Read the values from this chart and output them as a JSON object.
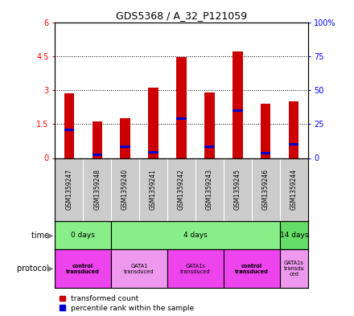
{
  "title": "GDS5368 / A_32_P121059",
  "samples": [
    "GSM1359247",
    "GSM1359248",
    "GSM1359240",
    "GSM1359241",
    "GSM1359242",
    "GSM1359243",
    "GSM1359245",
    "GSM1359246",
    "GSM1359244"
  ],
  "red_values": [
    2.85,
    1.6,
    1.75,
    3.1,
    4.45,
    2.9,
    4.7,
    2.4,
    2.5
  ],
  "blue_values": [
    1.25,
    0.15,
    0.5,
    0.25,
    1.75,
    0.5,
    2.1,
    0.2,
    0.6
  ],
  "ylim_left": [
    0,
    6
  ],
  "ylim_right": [
    0,
    100
  ],
  "yticks_left": [
    0,
    1.5,
    3.0,
    4.5,
    6.0
  ],
  "yticks_right": [
    0,
    25,
    50,
    75,
    100
  ],
  "ytick_labels_left": [
    "0",
    "1.5",
    "3",
    "4.5",
    "6"
  ],
  "ytick_labels_right": [
    "0",
    "25",
    "50",
    "75",
    "100%"
  ],
  "bar_color_red": "#CC0000",
  "bar_color_blue": "#0000CC",
  "grid_color": "black",
  "bg_color": "white",
  "label_area_color": "#CCCCCC",
  "bar_width": 0.35,
  "time_groups": [
    {
      "label": "0 days",
      "start": 0,
      "end": 1,
      "color": "#88EE88"
    },
    {
      "label": "4 days",
      "start": 1,
      "end": 7,
      "color": "#88EE88"
    },
    {
      "label": "14 days",
      "start": 7,
      "end": 8,
      "color": "#55DD55"
    }
  ],
  "protocol_groups": [
    {
      "label": "control\ntransduced",
      "start": 0,
      "end": 1,
      "color": "#EE55EE",
      "bold": true
    },
    {
      "label": "GATA1\ntransduced",
      "start": 1,
      "end": 3,
      "color": "#EE99EE",
      "bold": false
    },
    {
      "label": "GATA1s\ntransduced",
      "start": 3,
      "end": 5,
      "color": "#EE55EE",
      "bold": false
    },
    {
      "label": "control\ntransduced",
      "start": 5,
      "end": 7,
      "color": "#EE55EE",
      "bold": true
    },
    {
      "label": "GATA1s\ntransdu\nced",
      "start": 7,
      "end": 8,
      "color": "#EE99EE",
      "bold": false
    }
  ]
}
